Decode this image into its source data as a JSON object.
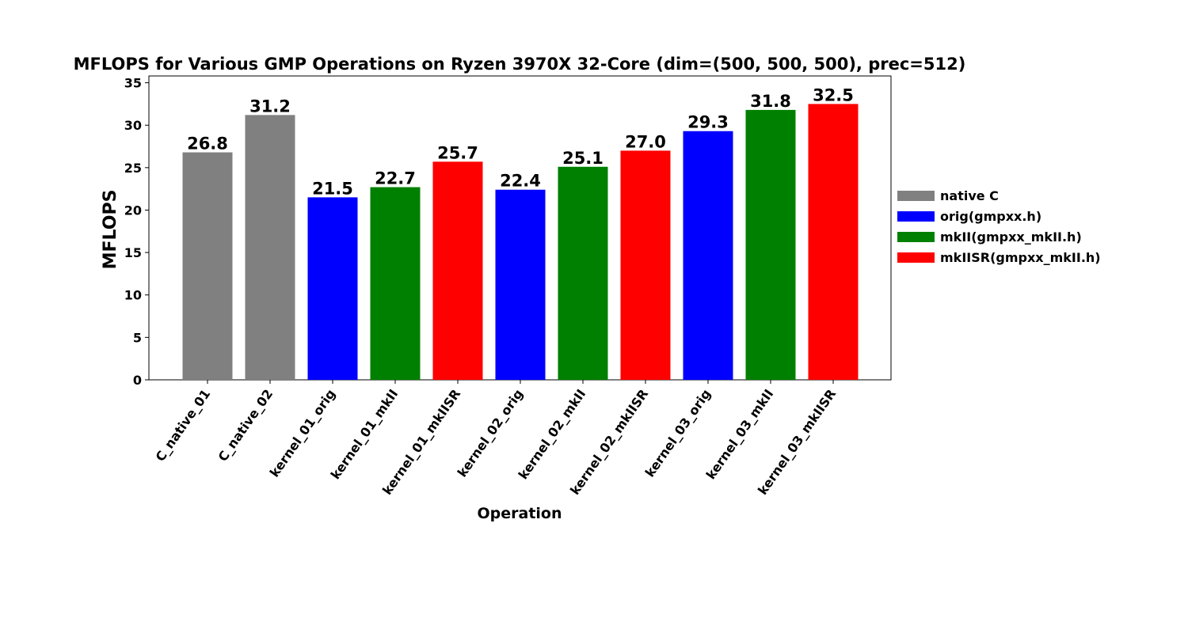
{
  "chart_data": {
    "type": "bar",
    "title": "MFLOPS for Various GMP Operations on Ryzen 3970X 32-Core (dim=(500, 500, 500), prec=512)",
    "xlabel": "Operation",
    "ylabel": "MFLOPS",
    "ylim": [
      0,
      35.8
    ],
    "yticks": [
      0,
      5,
      10,
      15,
      20,
      25,
      30,
      35
    ],
    "categories": [
      "C_native_01",
      "C_native_02",
      "kernel_01_orig",
      "kernel_01_mkII",
      "kernel_01_mkIISR",
      "kernel_02_orig",
      "kernel_02_mkII",
      "kernel_02_mkIISR",
      "kernel_03_orig",
      "kernel_03_mkII",
      "kernel_03_mkIISR"
    ],
    "values": [
      26.8,
      31.2,
      21.5,
      22.7,
      25.7,
      22.4,
      25.1,
      27.0,
      29.3,
      31.8,
      32.5
    ],
    "value_labels": [
      "26.8",
      "31.2",
      "21.5",
      "22.7",
      "25.7",
      "22.4",
      "25.1",
      "27.0",
      "29.3",
      "31.8",
      "32.5"
    ],
    "bar_groups": [
      "native C",
      "native C",
      "orig(gmpxx.h)",
      "mkII(gmpxx_mkII.h)",
      "mkIISR(gmpxx_mkII.h)",
      "orig(gmpxx.h)",
      "mkII(gmpxx_mkII.h)",
      "mkIISR(gmpxx_mkII.h)",
      "orig(gmpxx.h)",
      "mkII(gmpxx_mkII.h)",
      "mkIISR(gmpxx_mkII.h)"
    ],
    "legend": [
      {
        "name": "native C",
        "color": "#808080"
      },
      {
        "name": "orig(gmpxx.h)",
        "color": "#0000ff"
      },
      {
        "name": "mkII(gmpxx_mkII.h)",
        "color": "#008000"
      },
      {
        "name": "mkIISR(gmpxx_mkII.h)",
        "color": "#ff0000"
      }
    ],
    "legend_placement": "outside-right",
    "grid": false,
    "xtick_rotation": 55
  }
}
